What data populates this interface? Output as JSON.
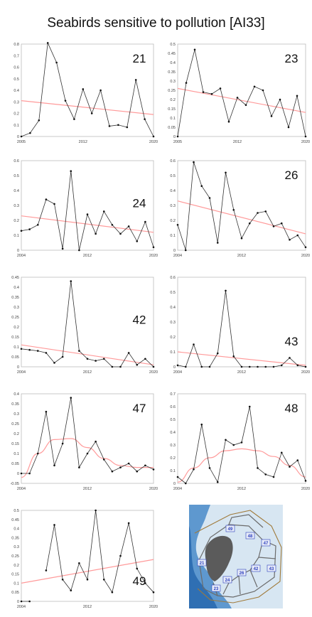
{
  "title": "Seabirds sensitive to pollution [AI33]",
  "colors": {
    "data_line": "#333333",
    "trend_line": "#ff9a9a",
    "frame": "#bbbbbb",
    "tick_text": "#444444",
    "map_land": "#d7e6f2",
    "map_sea": "#2f6fb3",
    "map_border": "#6b6b6b",
    "map_label": "#2b3fbf"
  },
  "chart_data": [
    {
      "type": "line",
      "panel_label": "21",
      "x": [
        2005,
        2006,
        2007,
        2008,
        2009,
        2010,
        2011,
        2012,
        2013,
        2014,
        2015,
        2016,
        2017,
        2018,
        2019,
        2020
      ],
      "values": [
        0.0,
        0.03,
        0.14,
        0.81,
        0.64,
        0.31,
        0.15,
        0.41,
        0.2,
        0.4,
        0.09,
        0.1,
        0.08,
        0.49,
        0.15,
        0.0
      ],
      "trend": {
        "kind": "linear",
        "start": [
          2005,
          0.31
        ],
        "end": [
          2020,
          0.19
        ]
      },
      "ylim": [
        0,
        0.8
      ],
      "yticks": [
        "0",
        "0.1",
        "0.2",
        "0.3",
        "0.4",
        "0.5",
        "0.6",
        "0.7",
        "0.8"
      ],
      "xlim": [
        2005,
        2020
      ],
      "xticks": [
        "2005",
        "2012",
        "2020"
      ]
    },
    {
      "type": "line",
      "panel_label": "23",
      "x": [
        2005,
        2006,
        2007,
        2008,
        2009,
        2010,
        2011,
        2012,
        2013,
        2014,
        2015,
        2016,
        2017,
        2018,
        2019,
        2020
      ],
      "values": [
        0.0,
        0.29,
        0.47,
        0.24,
        0.23,
        0.26,
        0.08,
        0.21,
        0.17,
        0.27,
        0.25,
        0.11,
        0.2,
        0.05,
        0.22,
        0.0
      ],
      "trend": {
        "kind": "linear",
        "start": [
          2005,
          0.26
        ],
        "end": [
          2020,
          0.13
        ]
      },
      "ylim": [
        0,
        0.5
      ],
      "yticks": [
        "0",
        "0.05",
        "0.1",
        "0.15",
        "0.2",
        "0.25",
        "0.3",
        "0.35",
        "0.4",
        "0.45",
        "0.5"
      ],
      "xlim": [
        2005,
        2020
      ],
      "xticks": [
        "2005",
        "2012",
        "2020"
      ]
    },
    {
      "type": "line",
      "panel_label": "24",
      "x": [
        2004,
        2005,
        2006,
        2007,
        2008,
        2009,
        2010,
        2011,
        2012,
        2013,
        2014,
        2015,
        2016,
        2017,
        2018,
        2019,
        2020
      ],
      "values": [
        0.13,
        0.14,
        0.17,
        0.34,
        0.31,
        0.01,
        0.53,
        0.0,
        0.24,
        0.11,
        0.26,
        0.17,
        0.11,
        0.16,
        0.06,
        0.19,
        0.02
      ],
      "trend": {
        "kind": "linear",
        "start": [
          2004,
          0.23
        ],
        "end": [
          2020,
          0.12
        ]
      },
      "ylim": [
        0,
        0.6
      ],
      "yticks": [
        "0",
        "0.1",
        "0.2",
        "0.3",
        "0.4",
        "0.5",
        "0.6"
      ],
      "xlim": [
        2004,
        2020
      ],
      "xticks": [
        "2004",
        "2012",
        "2020"
      ]
    },
    {
      "type": "line",
      "panel_label": "26",
      "x": [
        2004,
        2005,
        2006,
        2007,
        2008,
        2009,
        2010,
        2011,
        2012,
        2013,
        2014,
        2015,
        2016,
        2017,
        2018,
        2019,
        2020
      ],
      "values": [
        0.17,
        0.0,
        0.59,
        0.43,
        0.35,
        0.05,
        0.52,
        0.27,
        0.08,
        0.18,
        0.25,
        0.26,
        0.16,
        0.18,
        0.07,
        0.1,
        0.02
      ],
      "trend": {
        "kind": "linear",
        "start": [
          2004,
          0.33
        ],
        "end": [
          2020,
          0.11
        ]
      },
      "ylim": [
        0,
        0.6
      ],
      "yticks": [
        "0",
        "0.1",
        "0.2",
        "0.3",
        "0.4",
        "0.5",
        "0.6"
      ],
      "xlim": [
        2004,
        2020
      ],
      "xticks": [
        "2004",
        "2012",
        "2020"
      ]
    },
    {
      "type": "line",
      "panel_label": "42",
      "x": [
        2004,
        2005,
        2006,
        2007,
        2008,
        2009,
        2010,
        2011,
        2012,
        2013,
        2014,
        2015,
        2016,
        2017,
        2018,
        2019,
        2020
      ],
      "values": [
        0.09,
        0.085,
        0.08,
        0.07,
        0.02,
        0.05,
        0.43,
        0.08,
        0.04,
        0.03,
        0.04,
        0.0,
        0.0,
        0.07,
        0.01,
        0.04,
        0.0
      ],
      "trend": {
        "kind": "linear",
        "start": [
          2004,
          0.11
        ],
        "end": [
          2020,
          0.01
        ]
      },
      "ylim": [
        0,
        0.45
      ],
      "yticks": [
        "0",
        "0.05",
        "0.1",
        "0.15",
        "0.2",
        "0.25",
        "0.3",
        "0.35",
        "0.4",
        "0.45"
      ],
      "xlim": [
        2004,
        2020
      ],
      "xticks": [
        "2004",
        "2012",
        "2020"
      ]
    },
    {
      "type": "line",
      "panel_label": "43",
      "x": [
        2004,
        2005,
        2006,
        2007,
        2008,
        2009,
        2010,
        2011,
        2012,
        2013,
        2014,
        2015,
        2016,
        2017,
        2018,
        2019,
        2020
      ],
      "values": [
        0.01,
        0.0,
        0.15,
        0.0,
        0.0,
        0.09,
        0.51,
        0.07,
        0.0,
        0.0,
        0.0,
        0.0,
        0.0,
        0.01,
        0.06,
        0.01,
        0.0
      ],
      "trend": {
        "kind": "linear",
        "start": [
          2004,
          0.1
        ],
        "end": [
          2020,
          0.01
        ]
      },
      "ylim": [
        0,
        0.6
      ],
      "yticks": [
        "0",
        "0.1",
        "0.2",
        "0.3",
        "0.4",
        "0.5",
        "0.6"
      ],
      "xlim": [
        2004,
        2020
      ],
      "xticks": [
        "2004",
        "2012",
        "2020"
      ]
    },
    {
      "type": "line",
      "panel_label": "47",
      "x": [
        2004,
        2005,
        2006,
        2007,
        2008,
        2009,
        2010,
        2011,
        2012,
        2013,
        2014,
        2015,
        2016,
        2017,
        2018,
        2019,
        2020
      ],
      "values": [
        0.0,
        0.0,
        0.1,
        0.31,
        0.04,
        0.15,
        0.38,
        0.03,
        0.1,
        0.16,
        0.07,
        0.01,
        0.03,
        0.05,
        0.01,
        0.04,
        0.02
      ],
      "trend": {
        "kind": "curve",
        "points": [
          [
            2004,
            -0.02
          ],
          [
            2006,
            0.1
          ],
          [
            2008,
            0.17
          ],
          [
            2010,
            0.175
          ],
          [
            2012,
            0.13
          ],
          [
            2014,
            0.075
          ],
          [
            2016,
            0.04
          ],
          [
            2018,
            0.03
          ],
          [
            2020,
            0.03
          ]
        ]
      },
      "ylim": [
        -0.05,
        0.4
      ],
      "yticks": [
        "-0.05",
        "0",
        "0.05",
        "0.1",
        "0.15",
        "0.2",
        "0.25",
        "0.3",
        "0.35",
        "0.4"
      ],
      "xlim": [
        2004,
        2020
      ],
      "xticks": [
        "2004",
        "2012",
        "2020"
      ]
    },
    {
      "type": "line",
      "panel_label": "48",
      "x": [
        2004,
        2005,
        2006,
        2007,
        2008,
        2009,
        2010,
        2011,
        2012,
        2013,
        2014,
        2015,
        2016,
        2017,
        2018,
        2019,
        2020
      ],
      "values": [
        0.05,
        0.0,
        0.11,
        0.46,
        0.12,
        0.01,
        0.34,
        0.3,
        0.32,
        0.6,
        0.12,
        0.07,
        0.05,
        0.24,
        0.13,
        0.18,
        0.02
      ],
      "trend": {
        "kind": "curve",
        "points": [
          [
            2004,
            0.01
          ],
          [
            2006,
            0.12
          ],
          [
            2008,
            0.2
          ],
          [
            2010,
            0.255
          ],
          [
            2012,
            0.27
          ],
          [
            2014,
            0.255
          ],
          [
            2016,
            0.21
          ],
          [
            2018,
            0.14
          ],
          [
            2020,
            0.05
          ]
        ]
      },
      "ylim": [
        0,
        0.7
      ],
      "yticks": [
        "0",
        "0.1",
        "0.2",
        "0.3",
        "0.4",
        "0.5",
        "0.6",
        "0.7"
      ],
      "xlim": [
        2004,
        2020
      ],
      "xticks": [
        "2004",
        "2012",
        "2020"
      ]
    },
    {
      "type": "line",
      "panel_label": "49",
      "x": [
        2004,
        2005,
        2006,
        2007,
        2008,
        2009,
        2010,
        2011,
        2012,
        2013,
        2014,
        2015,
        2016,
        2017,
        2018,
        2019,
        2020
      ],
      "values": [
        0.0,
        0.0,
        null,
        0.17,
        0.42,
        0.12,
        0.06,
        0.21,
        0.12,
        0.5,
        0.12,
        0.05,
        0.25,
        0.43,
        0.18,
        0.1,
        0.05
      ],
      "trend": {
        "kind": "linear",
        "start": [
          2004,
          0.1
        ],
        "end": [
          2020,
          0.23
        ]
      },
      "ylim": [
        0,
        0.5
      ],
      "yticks": [
        "0",
        "0.05",
        "0.1",
        "0.15",
        "0.2",
        "0.25",
        "0.3",
        "0.35",
        "0.4",
        "0.45",
        "0.5"
      ],
      "xlim": [
        2004,
        2020
      ],
      "xticks": [
        "2004",
        "2012",
        "2020"
      ]
    }
  ],
  "map": {
    "area_labels": [
      "49",
      "48",
      "47",
      "21",
      "42",
      "43",
      "26",
      "24",
      "23"
    ]
  }
}
